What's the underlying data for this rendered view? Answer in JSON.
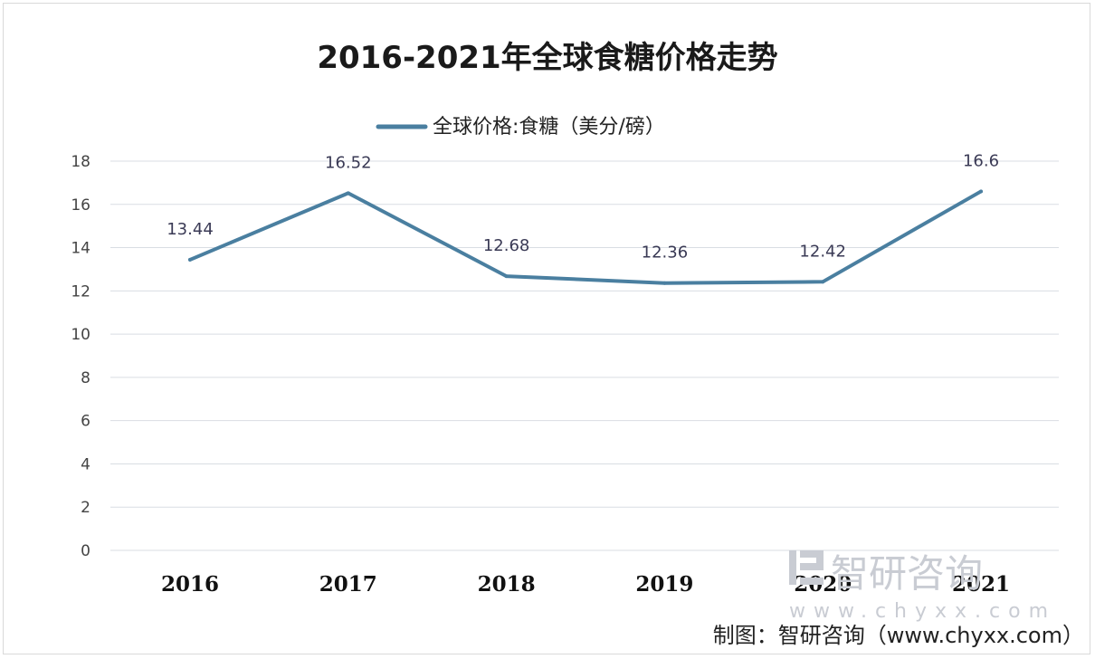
{
  "chart_data": {
    "type": "line",
    "title": "2016-2021年全球食糖价格走势",
    "categories": [
      "2016",
      "2017",
      "2018",
      "2019",
      "2020",
      "2021"
    ],
    "series": [
      {
        "name": "全球价格:食糖（美分/磅）",
        "values": [
          13.44,
          16.52,
          12.68,
          12.36,
          12.42,
          16.6
        ],
        "color": "#4a7fa0"
      }
    ],
    "data_labels": [
      "13.44",
      "16.52",
      "12.68",
      "12.36",
      "12.42",
      "16.6"
    ],
    "ylim": [
      0,
      18
    ],
    "yticks": [
      0,
      2,
      4,
      6,
      8,
      10,
      12,
      14,
      16,
      18
    ],
    "grid": true,
    "legend_position": "top-center",
    "xlabel": "",
    "ylabel": ""
  },
  "watermark": {
    "brand": "智研咨询",
    "url": "www.chyxx.com"
  },
  "credit": "制图：智研咨询（www.chyxx.com）",
  "colors": {
    "line": "#4a7fa0",
    "grid": "#d9dde3",
    "background": "#ffffff"
  }
}
